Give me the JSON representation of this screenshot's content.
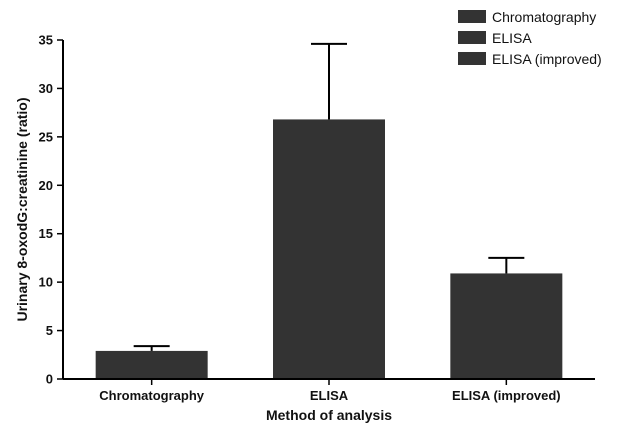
{
  "chart_data": {
    "type": "bar",
    "title": "",
    "categories": [
      "Chromatography",
      "ELISA",
      "ELISA (improved)"
    ],
    "values": [
      2.9,
      26.8,
      10.9
    ],
    "error_upper": [
      3.4,
      34.6,
      12.5
    ],
    "xlabel": "Method of analysis",
    "ylabel": "Urinary 8-oxodG:creatinine (ratio)",
    "ylim": [
      0,
      35
    ],
    "yticks": [
      0,
      5,
      10,
      15,
      20,
      25,
      30,
      35
    ],
    "grid": false,
    "legend": {
      "placement": "top-right",
      "entries": [
        "Chromatography",
        "ELISA",
        "ELISA (improved)"
      ]
    },
    "colors": {
      "bar": "#333333",
      "axis": "#000000"
    }
  }
}
